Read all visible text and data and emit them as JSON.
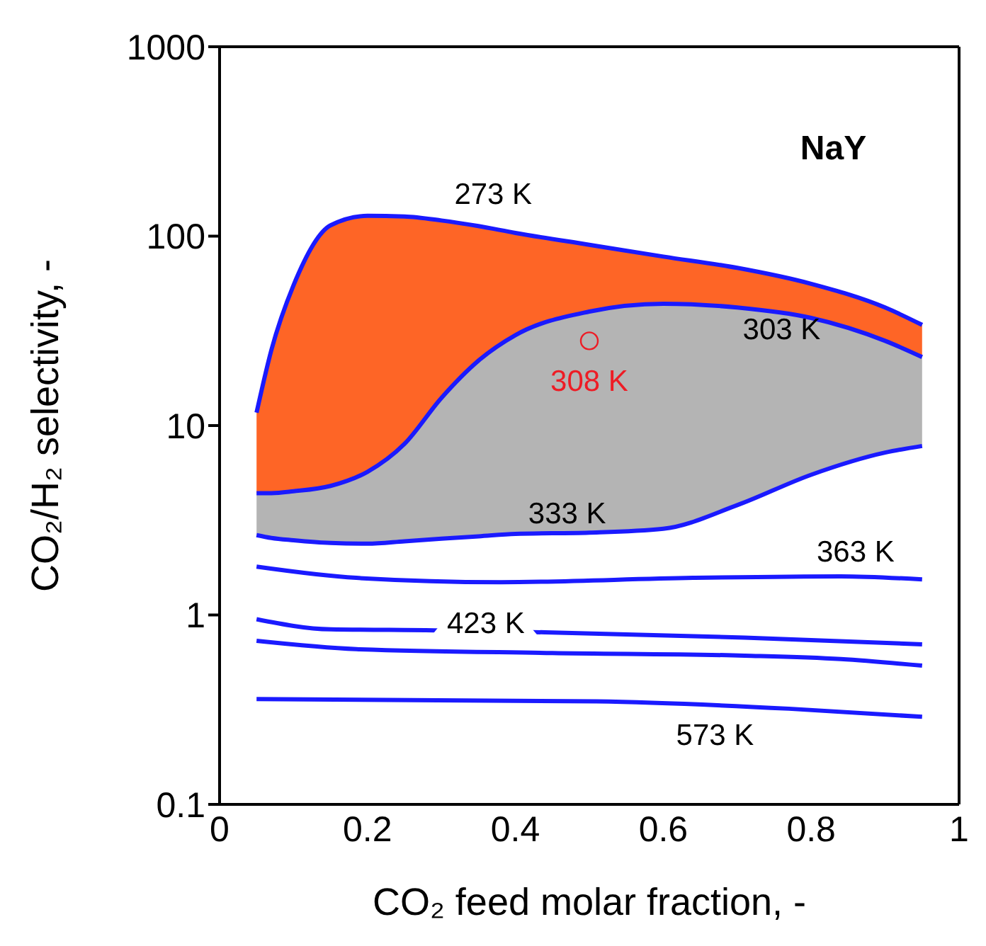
{
  "chart_data": {
    "type": "line",
    "xlabel": "CO₂ feed molar fraction, -",
    "ylabel": "CO₂/H₂ selectivity, -",
    "log": "y",
    "xlim": [
      0,
      1
    ],
    "xticks": [
      0,
      0.2,
      0.4,
      0.6,
      0.8,
      1
    ],
    "ylim": [
      0.1,
      1000
    ],
    "yticks": [
      0.1,
      1,
      10,
      100,
      1000
    ],
    "grid": false,
    "marker": "none",
    "line_style": "solid",
    "annotations": [
      "NaY"
    ],
    "series": [
      {
        "name": "273 K",
        "color": "#1a1aff",
        "x": [
          0.05,
          0.07,
          0.1,
          0.15,
          0.2,
          0.25,
          0.3,
          0.35,
          0.4,
          0.5,
          0.6,
          0.7,
          0.8,
          0.9,
          0.95
        ],
        "values": [
          11.7,
          25,
          55,
          114,
          128,
          127,
          121,
          113,
          104,
          90,
          78,
          68,
          56,
          42,
          34
        ],
        "lower": [
          4.4,
          4.4,
          4.5,
          4.8,
          5.7,
          8.0,
          14,
          22,
          30,
          40,
          44,
          42,
          37,
          28,
          23
        ],
        "upper": [
          11.7,
          25,
          55,
          114,
          128,
          127,
          121,
          113,
          104,
          90,
          78,
          68,
          56,
          42,
          34
        ]
      },
      {
        "name": "303 K",
        "color": "#1a1aff",
        "x": [
          0.05,
          0.07,
          0.1,
          0.15,
          0.2,
          0.25,
          0.3,
          0.35,
          0.4,
          0.5,
          0.6,
          0.7,
          0.8,
          0.9,
          0.95
        ],
        "values": [
          4.4,
          4.4,
          4.5,
          4.8,
          5.7,
          8.0,
          14,
          22,
          30,
          40,
          44,
          42,
          37,
          28,
          23
        ],
        "lower": [
          2.64,
          2.55,
          2.48,
          2.4,
          2.38,
          2.45,
          2.53,
          2.6,
          2.68,
          2.72,
          2.85,
          3.8,
          5.5,
          7.2,
          7.8
        ],
        "upper": [
          4.4,
          4.4,
          4.5,
          4.8,
          5.7,
          8.0,
          14,
          22,
          30,
          40,
          44,
          42,
          37,
          28,
          23
        ]
      },
      {
        "name": "333 K",
        "color": "#1a1aff",
        "x": [
          0.05,
          0.07,
          0.1,
          0.15,
          0.2,
          0.25,
          0.3,
          0.35,
          0.4,
          0.5,
          0.6,
          0.7,
          0.8,
          0.9,
          0.95
        ],
        "values": [
          2.64,
          2.55,
          2.48,
          2.4,
          2.38,
          2.45,
          2.53,
          2.6,
          2.68,
          2.72,
          2.85,
          3.8,
          5.5,
          7.2,
          7.8
        ]
      },
      {
        "name": "363 K",
        "color": "#1a1aff",
        "x": [
          0.05,
          0.185,
          0.38,
          0.64,
          0.84,
          0.95
        ],
        "values": [
          1.8,
          1.57,
          1.49,
          1.57,
          1.6,
          1.54
        ]
      },
      {
        "name": "423 K",
        "color": "#1a1aff",
        "x": [
          0.05,
          0.15,
          0.29,
          0.44,
          0.71,
          0.95
        ],
        "values": [
          0.95,
          0.84,
          0.83,
          0.81,
          0.76,
          0.7
        ]
      },
      {
        "color": "#1a1aff",
        "x": [
          0.05,
          0.185,
          0.45,
          0.71,
          0.84,
          0.95
        ],
        "values": [
          0.73,
          0.66,
          0.63,
          0.61,
          0.585,
          0.54
        ]
      },
      {
        "name": "573 K",
        "color": "#1a1aff",
        "x": [
          0.05,
          0.51,
          0.77,
          0.95
        ],
        "values": [
          0.36,
          0.35,
          0.32,
          0.29
        ]
      },
      {
        "name": "308 K",
        "type": "scatter",
        "marker": "circle",
        "color": "#ee1c25",
        "x": [
          0.5
        ],
        "values": [
          28
        ]
      }
    ]
  }
}
